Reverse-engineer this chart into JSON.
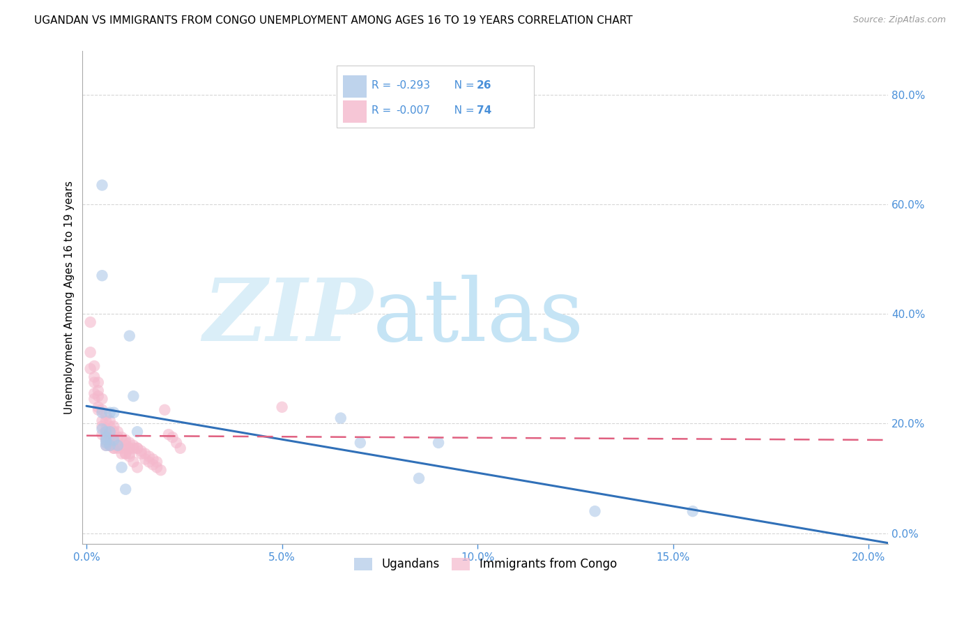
{
  "title": "UGANDAN VS IMMIGRANTS FROM CONGO UNEMPLOYMENT AMONG AGES 16 TO 19 YEARS CORRELATION CHART",
  "source": "Source: ZipAtlas.com",
  "ylabel": "Unemployment Among Ages 16 to 19 years",
  "xlim": [
    -0.001,
    0.205
  ],
  "ylim": [
    -0.02,
    0.88
  ],
  "right_yticks": [
    0.0,
    0.2,
    0.4,
    0.6,
    0.8
  ],
  "right_yticklabels": [
    "0.0%",
    "20.0%",
    "40.0%",
    "60.0%",
    "80.0%"
  ],
  "xticks": [
    0.0,
    0.05,
    0.1,
    0.15,
    0.2
  ],
  "xticklabels": [
    "0.0%",
    "5.0%",
    "10.0%",
    "15.0%",
    "20.0%"
  ],
  "blue_color": "#aec8e8",
  "pink_color": "#f4b8cc",
  "blue_line_color": "#3070b8",
  "pink_line_color": "#e06080",
  "tick_color": "#4a90d9",
  "grid_color": "#cccccc",
  "ugandan_x": [
    0.004,
    0.004,
    0.004,
    0.004,
    0.005,
    0.005,
    0.005,
    0.005,
    0.005,
    0.006,
    0.006,
    0.006,
    0.007,
    0.007,
    0.008,
    0.009,
    0.01,
    0.011,
    0.012,
    0.013,
    0.065,
    0.07,
    0.085,
    0.09,
    0.13,
    0.155
  ],
  "ugandan_y": [
    0.635,
    0.47,
    0.22,
    0.19,
    0.185,
    0.175,
    0.17,
    0.165,
    0.16,
    0.22,
    0.185,
    0.16,
    0.22,
    0.17,
    0.16,
    0.12,
    0.08,
    0.36,
    0.25,
    0.185,
    0.21,
    0.165,
    0.1,
    0.165,
    0.04,
    0.04
  ],
  "congo_x": [
    0.001,
    0.001,
    0.001,
    0.002,
    0.002,
    0.002,
    0.002,
    0.002,
    0.003,
    0.003,
    0.003,
    0.003,
    0.003,
    0.004,
    0.004,
    0.004,
    0.004,
    0.004,
    0.005,
    0.005,
    0.005,
    0.005,
    0.005,
    0.006,
    0.006,
    0.006,
    0.006,
    0.006,
    0.007,
    0.007,
    0.007,
    0.007,
    0.008,
    0.008,
    0.008,
    0.009,
    0.009,
    0.01,
    0.01,
    0.01,
    0.011,
    0.011,
    0.012,
    0.013,
    0.014,
    0.015,
    0.016,
    0.017,
    0.018,
    0.019,
    0.02,
    0.021,
    0.022,
    0.023,
    0.024,
    0.005,
    0.006,
    0.007,
    0.008,
    0.009,
    0.01,
    0.011,
    0.012,
    0.013,
    0.014,
    0.015,
    0.016,
    0.017,
    0.018,
    0.01,
    0.011,
    0.012,
    0.013,
    0.05
  ],
  "congo_y": [
    0.385,
    0.33,
    0.3,
    0.305,
    0.285,
    0.275,
    0.255,
    0.245,
    0.275,
    0.26,
    0.25,
    0.23,
    0.225,
    0.245,
    0.225,
    0.205,
    0.195,
    0.18,
    0.215,
    0.205,
    0.19,
    0.185,
    0.17,
    0.205,
    0.195,
    0.185,
    0.175,
    0.16,
    0.195,
    0.185,
    0.175,
    0.155,
    0.185,
    0.175,
    0.16,
    0.175,
    0.155,
    0.17,
    0.16,
    0.145,
    0.165,
    0.145,
    0.16,
    0.155,
    0.145,
    0.135,
    0.13,
    0.125,
    0.12,
    0.115,
    0.225,
    0.18,
    0.175,
    0.165,
    0.155,
    0.16,
    0.16,
    0.155,
    0.155,
    0.145,
    0.165,
    0.155,
    0.155,
    0.155,
    0.15,
    0.145,
    0.14,
    0.135,
    0.13,
    0.145,
    0.14,
    0.13,
    0.12,
    0.23
  ],
  "blue_trendline_x": [
    0.0,
    0.205
  ],
  "blue_trendline_y": [
    0.232,
    -0.018
  ],
  "pink_trendline_x": [
    0.0,
    0.205
  ],
  "pink_trendline_y": [
    0.178,
    0.17
  ],
  "title_fontsize": 11,
  "axis_label_fontsize": 11,
  "tick_fontsize": 11,
  "source_fontsize": 9,
  "legend_r1": "R = ",
  "legend_rv1": "-0.293",
  "legend_n1": "N = ",
  "legend_nv1": "26",
  "legend_r2": "R = ",
  "legend_rv2": "-0.007",
  "legend_n2": "N = ",
  "legend_nv2": "74"
}
